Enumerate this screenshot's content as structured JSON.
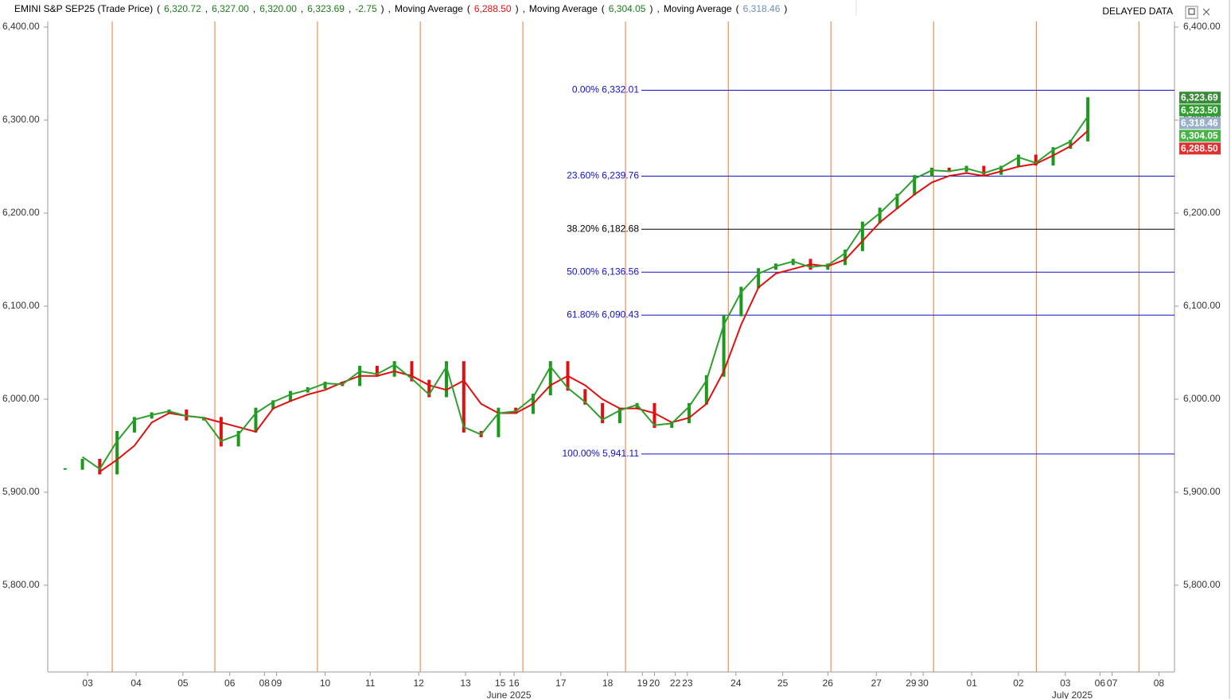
{
  "header": {
    "tokens": [
      {
        "text": "EMINI S&P SEP25 (Trade Price)",
        "color": "#000000"
      },
      {
        "text": "(",
        "color": "#000000"
      },
      {
        "text": "6,320.72",
        "color": "#1a7a1a"
      },
      {
        "text": ",",
        "color": "#000000"
      },
      {
        "text": "6,327.00",
        "color": "#1a7a1a"
      },
      {
        "text": ",",
        "color": "#000000"
      },
      {
        "text": "6,320.00",
        "color": "#1a7a1a"
      },
      {
        "text": ",",
        "color": "#000000"
      },
      {
        "text": "6,323.69",
        "color": "#1a7a1a"
      },
      {
        "text": ",",
        "color": "#000000"
      },
      {
        "text": "-2.75",
        "color": "#1a7a1a"
      },
      {
        "text": ")",
        "color": "#000000"
      },
      {
        "text": ",",
        "color": "#000000"
      },
      {
        "text": "Moving Average",
        "color": "#000000"
      },
      {
        "text": "(",
        "color": "#000000"
      },
      {
        "text": "6,288.50",
        "color": "#e01010"
      },
      {
        "text": ")",
        "color": "#000000"
      },
      {
        "text": ",",
        "color": "#000000"
      },
      {
        "text": "Moving Average",
        "color": "#000000"
      },
      {
        "text": "(",
        "color": "#000000"
      },
      {
        "text": "6,304.05",
        "color": "#1a7a1a"
      },
      {
        "text": ")",
        "color": "#000000"
      },
      {
        "text": ",",
        "color": "#000000"
      },
      {
        "text": "Moving Average",
        "color": "#000000"
      },
      {
        "text": "(",
        "color": "#000000"
      },
      {
        "text": "6,318.46",
        "color": "#6a8fb5"
      },
      {
        "text": ")",
        "color": "#000000"
      }
    ],
    "status": "DELAYED DATA"
  },
  "chart_data": {
    "type": "price",
    "xlim": [
      -1,
      64
    ],
    "ylim": [
      5706.8,
      6406
    ],
    "yticks": [
      {
        "value": 5800,
        "label": "5,800.00"
      },
      {
        "value": 5900,
        "label": "5,900.00"
      },
      {
        "value": 6000,
        "label": "6,000.00"
      },
      {
        "value": 6100,
        "label": "6,100.00"
      },
      {
        "value": 6200,
        "label": "6,200.00"
      },
      {
        "value": 6300,
        "label": "6,300.00"
      },
      {
        "value": 6400,
        "label": "6,400.00"
      }
    ],
    "xticks": [
      {
        "value": 1.3,
        "label": "03"
      },
      {
        "value": 4.1,
        "label": "04"
      },
      {
        "value": 6.8,
        "label": "05"
      },
      {
        "value": 9.5,
        "label": "06"
      },
      {
        "value": 11.5,
        "label": "08"
      },
      {
        "value": 12.2,
        "label": "09"
      },
      {
        "value": 15.0,
        "label": "10"
      },
      {
        "value": 17.6,
        "label": "11"
      },
      {
        "value": 20.4,
        "label": "12"
      },
      {
        "value": 23.1,
        "label": "13"
      },
      {
        "value": 25.1,
        "label": "15"
      },
      {
        "value": 25.9,
        "label": "16"
      },
      {
        "value": 28.6,
        "label": "17"
      },
      {
        "value": 31.3,
        "label": "18"
      },
      {
        "value": 33.3,
        "label": "19"
      },
      {
        "value": 34.0,
        "label": "20"
      },
      {
        "value": 35.2,
        "label": "22"
      },
      {
        "value": 35.9,
        "label": "23"
      },
      {
        "value": 38.7,
        "label": "24"
      },
      {
        "value": 41.4,
        "label": "25"
      },
      {
        "value": 44.0,
        "label": "26"
      },
      {
        "value": 46.8,
        "label": "27"
      },
      {
        "value": 48.8,
        "label": "29"
      },
      {
        "value": 49.5,
        "label": "30"
      },
      {
        "value": 52.3,
        "label": "01"
      },
      {
        "value": 55.0,
        "label": "02"
      },
      {
        "value": 57.7,
        "label": "03"
      },
      {
        "value": 59.7,
        "label": "06"
      },
      {
        "value": 60.4,
        "label": "07"
      },
      {
        "value": 63.1,
        "label": "08"
      }
    ],
    "months": [
      {
        "value": 25.6,
        "label": "June 2025"
      },
      {
        "value": 58.1,
        "label": "July 2025"
      }
    ],
    "session_lines": [
      2.72,
      8.64,
      14.56,
      20.49,
      26.41,
      32.33,
      38.26,
      44.18,
      50.1,
      56.03,
      61.95
    ],
    "session_color": "#f07830",
    "up_color": "#1a9a1a",
    "down_color": "#e01010",
    "closes": [
      5925,
      5935,
      5920,
      5965,
      5980,
      5985,
      5988,
      5978,
      5980,
      5950,
      5965,
      5990,
      5998,
      6008,
      6012,
      6018,
      6015,
      6035,
      6025,
      6040,
      6020,
      6003,
      6040,
      5965,
      5960,
      5990,
      5985,
      6005,
      6040,
      6010,
      5995,
      5975,
      5990,
      5995,
      5970,
      5975,
      5995,
      6025,
      6090,
      6120,
      6140,
      6145,
      6150,
      6140,
      6145,
      6160,
      6190,
      6205,
      6220,
      6240,
      6248,
      6245,
      6250,
      6242,
      6250,
      6262,
      6252,
      6270,
      6278,
      6323.69
    ],
    "series": [
      {
        "color": "#e01010",
        "values": [
          null,
          null,
          5922,
          5935,
          5950,
          5975,
          5985,
          5982,
          5980,
          5975,
          5970,
          5965,
          5990,
          5998,
          6005,
          6010,
          6018,
          6025,
          6025,
          6030,
          6025,
          6015,
          6010,
          6020,
          5995,
          5985,
          5985,
          5995,
          6015,
          6025,
          6015,
          6000,
          5990,
          5990,
          5985,
          5975,
          5980,
          5995,
          6030,
          6080,
          6120,
          6135,
          6140,
          6145,
          6143,
          6150,
          6170,
          6190,
          6205,
          6220,
          6233,
          6240,
          6243,
          6240,
          6245,
          6250,
          6253,
          6262,
          6272,
          6288.5
        ]
      },
      {
        "color": "#2e9e2e",
        "values": [
          null,
          5938,
          5925,
          5955,
          5978,
          5983,
          5987,
          5982,
          5980,
          5955,
          5962,
          5985,
          5997,
          6005,
          6010,
          6017,
          6016,
          6030,
          6027,
          6037,
          6022,
          6005,
          6035,
          5970,
          5962,
          5985,
          5987,
          6002,
          6035,
          6012,
          5997,
          5978,
          5988,
          5994,
          5972,
          5974,
          5992,
          6020,
          6080,
          6115,
          6135,
          6143,
          6148,
          6142,
          6144,
          6157,
          6185,
          6200,
          6218,
          6237,
          6246,
          6245,
          6248,
          6243,
          6249,
          6260,
          6254,
          6268,
          6277,
          6304.05
        ]
      }
    ],
    "fib_levels": [
      {
        "value": 6332.01,
        "label": "0.00% 6,332.01",
        "color": "#1010d0"
      },
      {
        "value": 6239.76,
        "label": "23.60% 6,239.76",
        "color": "#1010d0"
      },
      {
        "value": 6182.68,
        "label": "38.20% 6,182.68",
        "color": "#000000"
      },
      {
        "value": 6136.56,
        "label": "50.00% 6,136.56",
        "color": "#1010d0"
      },
      {
        "value": 6090.43,
        "label": "61.80% 6,090.43",
        "color": "#1010d0"
      },
      {
        "value": 5941.11,
        "label": "100.00% 5,941.11",
        "color": "#1010d0"
      }
    ],
    "last_labels": [
      {
        "value": 6323.69,
        "label": "6,323.69",
        "color": "#3a8a3a"
      },
      {
        "value": 6323.5,
        "label": "6,323.50",
        "color": "#2e9e2e"
      },
      {
        "value": 6318.46,
        "label": "6,318.46",
        "color": "#9ab0c8"
      },
      {
        "value": 6304.05,
        "label": "6,304.05",
        "color": "#46b446"
      },
      {
        "value": 6288.5,
        "label": "6,288.50",
        "color": "#e03030"
      }
    ]
  }
}
